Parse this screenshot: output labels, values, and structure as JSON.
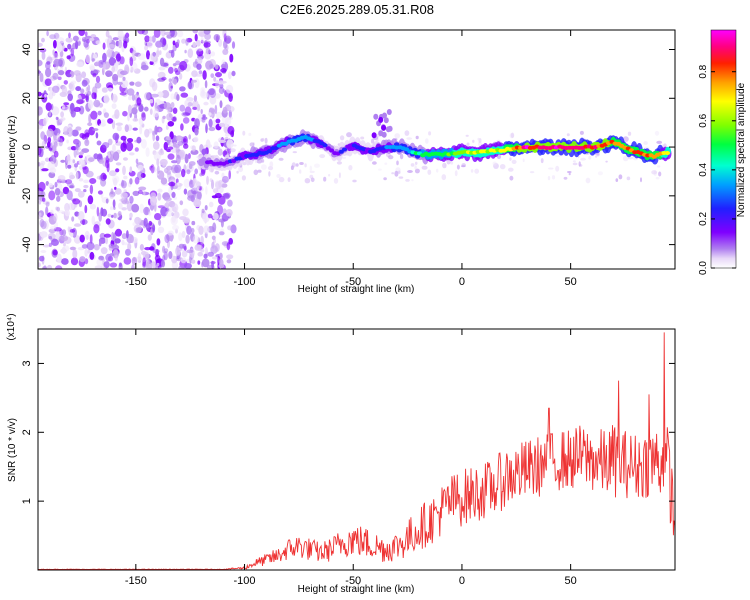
{
  "title": "C2E6.2025.289.05.31.R08",
  "chart_data": [
    {
      "type": "heatmap",
      "title": "",
      "xlabel": "Height of straight line (km)",
      "ylabel": "Frequency (Hz)",
      "xlim": [
        -195,
        98
      ],
      "ylim": [
        -50,
        48
      ],
      "xticks": [
        -150,
        -100,
        -50,
        0,
        50
      ],
      "yticks": [
        -40,
        -20,
        0,
        20,
        40
      ],
      "colorbar": {
        "label": "Normalized spectral amplitude",
        "range": [
          0,
          0.97
        ],
        "ticks": [
          0.0,
          0.2,
          0.4,
          0.6,
          0.8
        ],
        "tick_labels": [
          "0.0",
          "0.2",
          "0.4",
          "0.6",
          "0.8"
        ],
        "colormap": [
          "#ffffff",
          "#e8d8f8",
          "#b080f0",
          "#7f00ff",
          "#2020ff",
          "#00a0ff",
          "#00ffd0",
          "#00ff40",
          "#80ff00",
          "#ffff00",
          "#ffa000",
          "#ff2000",
          "#ff0080",
          "#ff00ff"
        ]
      },
      "noise_region": {
        "x_start": -195,
        "x_end": -105,
        "amplitude_range": [
          0.0,
          0.08
        ]
      },
      "signal_ridge": {
        "x": [
          -120,
          -110,
          -100,
          -90,
          -80,
          -72,
          -65,
          -58,
          -50,
          -42,
          -35,
          -28,
          -20,
          -10,
          0,
          10,
          20,
          30,
          40,
          50,
          60,
          70,
          80,
          88,
          95
        ],
        "frequency": [
          -6,
          -7,
          -4,
          -2,
          2,
          4,
          2,
          -3,
          1,
          -2,
          0,
          0,
          -3,
          -3,
          -2,
          -2,
          -1,
          0,
          0,
          0,
          0,
          2,
          -2,
          -4,
          -2
        ],
        "amplitude": [
          0.18,
          0.25,
          0.3,
          0.35,
          0.4,
          0.45,
          0.3,
          0.25,
          0.3,
          0.3,
          0.35,
          0.45,
          0.5,
          0.6,
          0.65,
          0.7,
          0.75,
          0.95,
          0.95,
          0.95,
          0.9,
          0.85,
          0.85,
          0.8,
          0.7
        ]
      },
      "side_feature": {
        "x": -37,
        "frequency_range": [
          4,
          18
        ],
        "amplitude": 0.2
      }
    },
    {
      "type": "line",
      "title": "",
      "xlabel": "Height of straight line (km)",
      "ylabel": "SNR (10 * v/v)",
      "y_multiplier": "(x10⁴)",
      "xlim": [
        -195,
        98
      ],
      "ylim": [
        0,
        3.5
      ],
      "xticks": [
        -150,
        -100,
        -50,
        0,
        50
      ],
      "yticks": [
        1,
        2,
        3
      ],
      "series": [
        {
          "name": "SNR",
          "color": "#ee3333",
          "x": [
            -195,
            -150,
            -110,
            -100,
            -95,
            -90,
            -85,
            -80,
            -75,
            -70,
            -65,
            -60,
            -55,
            -50,
            -45,
            -40,
            -35,
            -30,
            -25,
            -20,
            -15,
            -10,
            -5,
            0,
            5,
            10,
            15,
            20,
            25,
            30,
            35,
            40,
            45,
            50,
            55,
            60,
            65,
            70,
            75,
            80,
            85,
            90,
            95,
            98
          ],
          "values": [
            0.01,
            0.01,
            0.01,
            0.03,
            0.1,
            0.15,
            0.2,
            0.3,
            0.35,
            0.3,
            0.25,
            0.3,
            0.4,
            0.45,
            0.4,
            0.35,
            0.3,
            0.35,
            0.45,
            0.6,
            0.7,
            0.85,
            1.0,
            1.05,
            1.1,
            1.15,
            1.2,
            1.35,
            1.4,
            1.45,
            1.5,
            1.55,
            1.6,
            1.6,
            1.65,
            1.6,
            1.55,
            1.6,
            1.55,
            1.5,
            1.55,
            1.6,
            1.5,
            0.6
          ],
          "noise_amplitude": [
            0.003,
            0.003,
            0.003,
            0.02,
            0.06,
            0.09,
            0.12,
            0.16,
            0.18,
            0.17,
            0.15,
            0.18,
            0.22,
            0.25,
            0.24,
            0.22,
            0.2,
            0.22,
            0.28,
            0.32,
            0.35,
            0.38,
            0.4,
            0.42,
            0.42,
            0.42,
            0.42,
            0.45,
            0.45,
            0.45,
            0.45,
            0.45,
            0.45,
            0.45,
            0.48,
            0.48,
            0.5,
            0.55,
            0.5,
            0.5,
            0.5,
            0.55,
            0.6,
            0.5
          ],
          "peaks": [
            {
              "x": 93,
              "y": 3.45
            },
            {
              "x": 72,
              "y": 2.75
            },
            {
              "x": 86,
              "y": 2.55
            },
            {
              "x": 40,
              "y": 2.35
            }
          ]
        }
      ]
    }
  ]
}
